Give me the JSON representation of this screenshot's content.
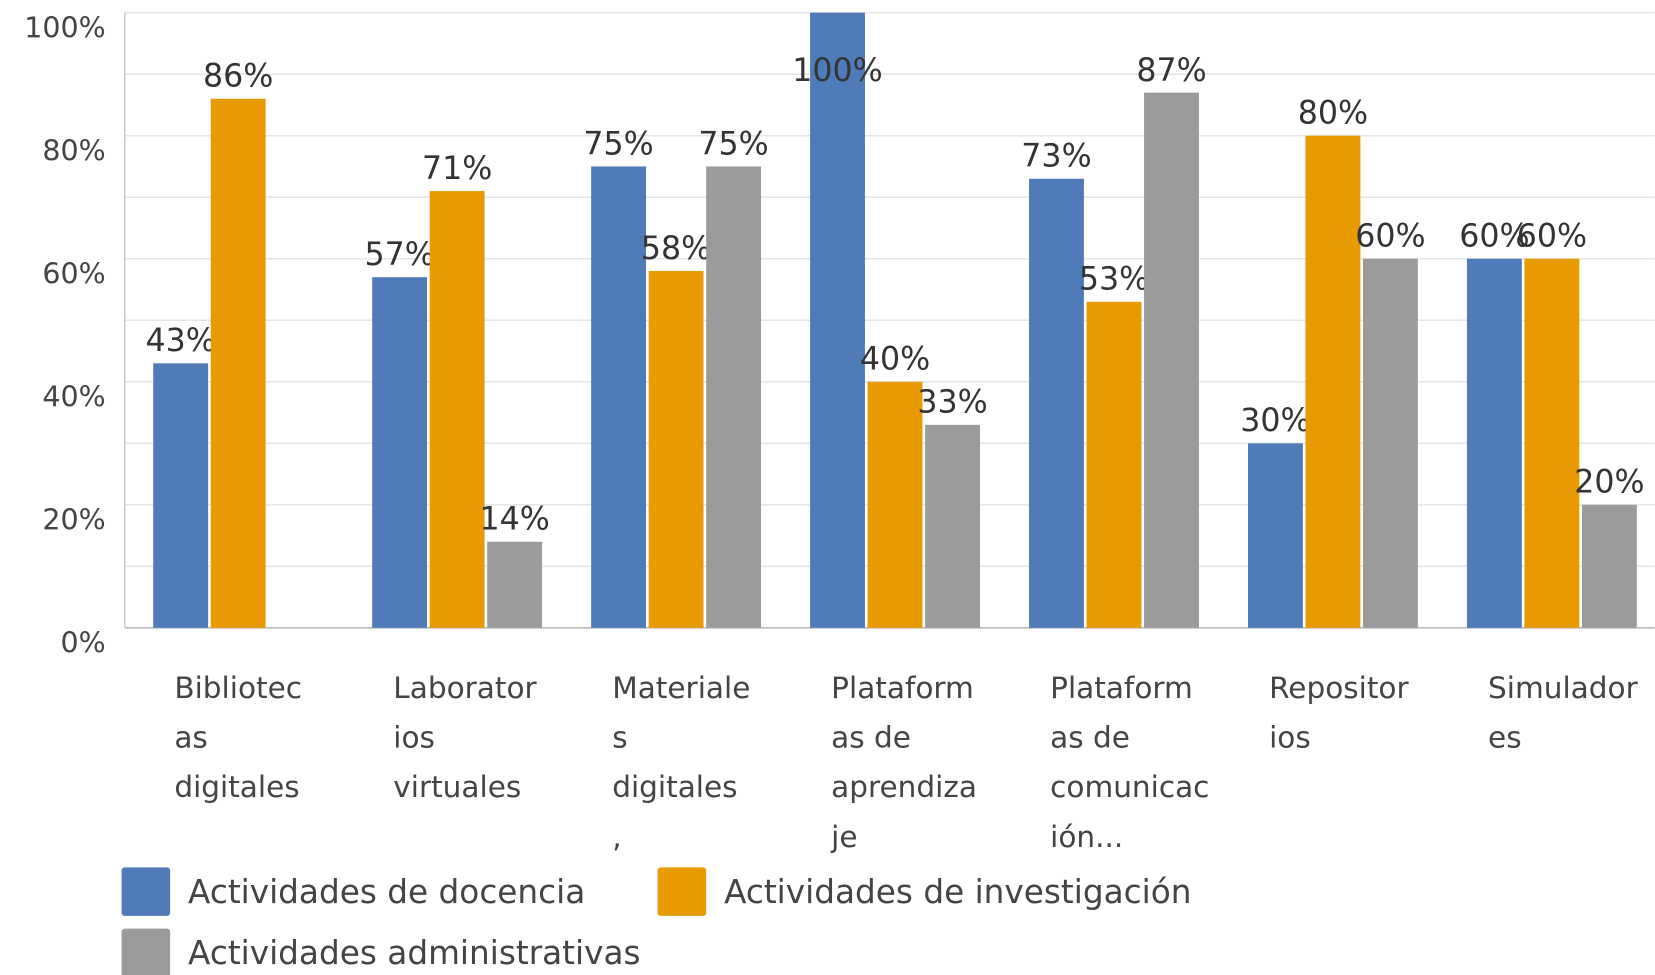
{
  "chart_data": {
    "type": "bar",
    "categories": [
      "Bibliotecas digitales",
      "Laboratorios virtuales",
      "Materiales digitales,",
      "Plataformas de aprendizaje",
      "Plataformas de comunicación...",
      "Repositorios",
      "Simuladores"
    ],
    "series": [
      {
        "name": "Actividades de docencia",
        "color": "#4f7cb8",
        "values": [
          43,
          57,
          75,
          100,
          73,
          30,
          60
        ],
        "value_labels": [
          "43%",
          "57%",
          "75%",
          "100%",
          "73%",
          "30%",
          "60%"
        ]
      },
      {
        "name": "Actividades de investigación",
        "color": "#e89a00",
        "values": [
          86,
          71,
          58,
          40,
          53,
          80,
          60
        ],
        "value_labels": [
          "86%",
          "71%",
          "58%",
          "40%",
          "53%",
          "80%",
          "60%"
        ]
      },
      {
        "name": "Actividades administrativas",
        "color": "#9b9b9b",
        "values": [
          null,
          14,
          75,
          33,
          87,
          60,
          20
        ],
        "value_labels": [
          null,
          "14%",
          "75%",
          "33%",
          "87%",
          "60%",
          "20%"
        ]
      }
    ],
    "ylim": [
      0,
      100
    ],
    "yticks": [
      {
        "value": 0,
        "label": "0%"
      },
      {
        "value": 20,
        "label": "20%"
      },
      {
        "value": 40,
        "label": "40%"
      },
      {
        "value": 60,
        "label": "60%"
      },
      {
        "value": 80,
        "label": "80%"
      },
      {
        "value": 100,
        "label": "100%"
      }
    ],
    "minor_yticks": [
      10,
      30,
      50,
      70,
      90
    ],
    "grid": true
  }
}
